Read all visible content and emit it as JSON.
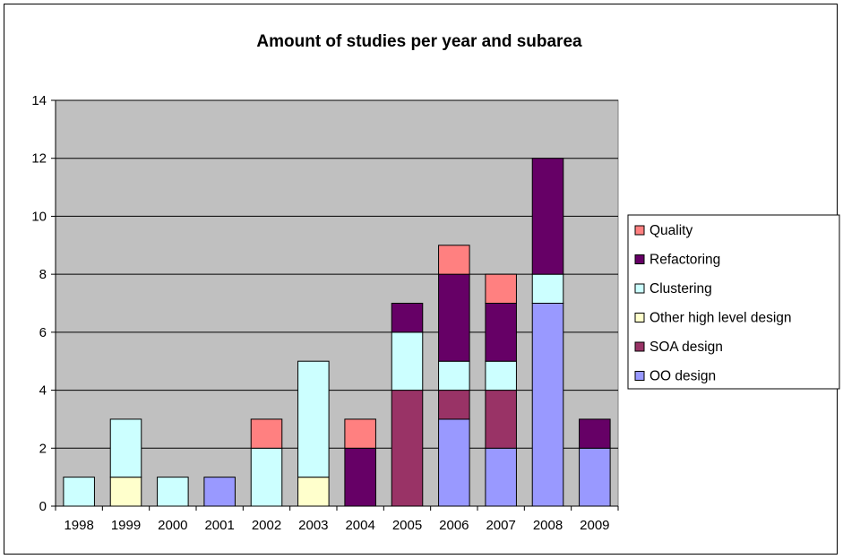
{
  "chart_data": {
    "type": "bar",
    "stacked": true,
    "title": "Amount of studies per year and subarea",
    "xlabel": "",
    "ylabel": "",
    "ylim": [
      0,
      14
    ],
    "yticks": [
      0,
      2,
      4,
      6,
      8,
      10,
      12,
      14
    ],
    "grid": true,
    "legend_position": "right",
    "plot_background": "#c0c0c0",
    "categories": [
      "1998",
      "1999",
      "2000",
      "2001",
      "2002",
      "2003",
      "2004",
      "2005",
      "2006",
      "2007",
      "2008",
      "2009"
    ],
    "series": [
      {
        "name": "OO design",
        "color": "#9999ff",
        "values": [
          0,
          0,
          0,
          1,
          0,
          0,
          0,
          0,
          3,
          2,
          7,
          2
        ]
      },
      {
        "name": "SOA design",
        "color": "#993366",
        "values": [
          0,
          0,
          0,
          0,
          0,
          0,
          0,
          4,
          1,
          2,
          0,
          0
        ]
      },
      {
        "name": "Other high level design",
        "color": "#ffffcc",
        "values": [
          0,
          1,
          0,
          0,
          0,
          1,
          0,
          0,
          0,
          0,
          0,
          0
        ]
      },
      {
        "name": "Clustering",
        "color": "#ccffff",
        "values": [
          1,
          2,
          1,
          0,
          2,
          4,
          0,
          2,
          1,
          1,
          1,
          0
        ]
      },
      {
        "name": "Refactoring",
        "color": "#660066",
        "values": [
          0,
          0,
          0,
          0,
          0,
          0,
          2,
          1,
          3,
          2,
          4,
          1
        ]
      },
      {
        "name": "Quality",
        "color": "#ff8080",
        "values": [
          0,
          0,
          0,
          0,
          1,
          0,
          1,
          0,
          1,
          1,
          0,
          0
        ]
      }
    ]
  }
}
